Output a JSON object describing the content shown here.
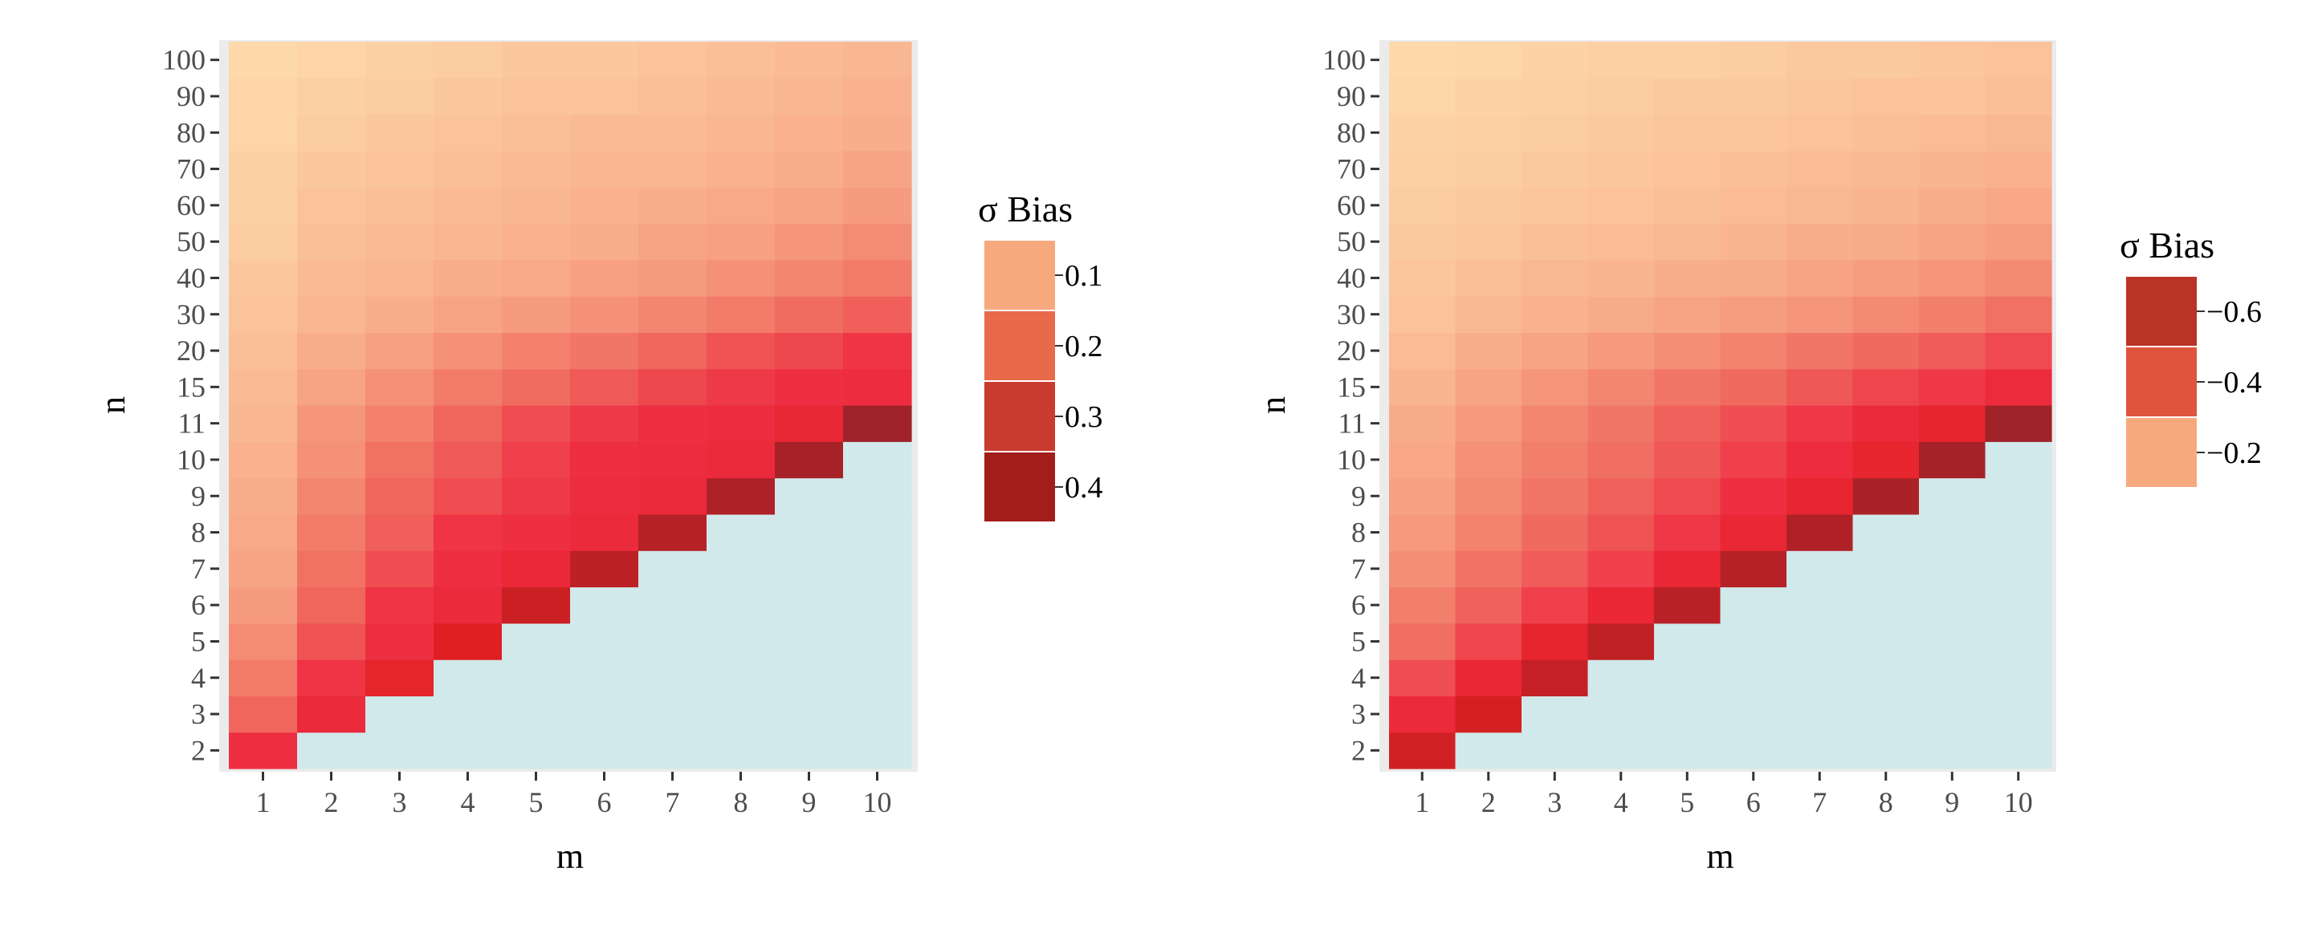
{
  "chart_data": [
    {
      "type": "heatmap",
      "xlabel": "m",
      "ylabel": "n",
      "x_categories": [
        "1",
        "2",
        "3",
        "4",
        "5",
        "6",
        "7",
        "8",
        "9",
        "10"
      ],
      "y_categories": [
        "2",
        "3",
        "4",
        "5",
        "6",
        "7",
        "8",
        "9",
        "10",
        "11",
        "15",
        "20",
        "30",
        "40",
        "50",
        "60",
        "70",
        "80",
        "90",
        "100"
      ],
      "missing_color": "#d1e9ea",
      "legend": {
        "title": "σ Bias",
        "entries": [
          {
            "label": "0.1",
            "color": "#f7a97e"
          },
          {
            "label": "0.2",
            "color": "#e86a4b"
          },
          {
            "label": "0.3",
            "color": "#c83b2e"
          },
          {
            "label": "0.4",
            "color": "#a31d1a"
          }
        ]
      },
      "values": [
        [
          0.34,
          null,
          null,
          null,
          null,
          null,
          null,
          null,
          null,
          null
        ],
        [
          0.25,
          0.36,
          null,
          null,
          null,
          null,
          null,
          null,
          null,
          null
        ],
        [
          0.21,
          0.33,
          0.4,
          null,
          null,
          null,
          null,
          null,
          null,
          null
        ],
        [
          0.18,
          0.28,
          0.34,
          0.43,
          null,
          null,
          null,
          null,
          null,
          null
        ],
        [
          0.15,
          0.25,
          0.33,
          0.36,
          0.46,
          null,
          null,
          null,
          null,
          null
        ],
        [
          0.13,
          0.23,
          0.29,
          0.34,
          0.37,
          0.48,
          null,
          null,
          null,
          null
        ],
        [
          0.12,
          0.21,
          0.26,
          0.33,
          0.34,
          0.36,
          0.49,
          null,
          null,
          null
        ],
        [
          0.11,
          0.19,
          0.25,
          0.29,
          0.32,
          0.35,
          0.36,
          0.5,
          null,
          null
        ],
        [
          0.1,
          0.17,
          0.23,
          0.27,
          0.31,
          0.34,
          0.35,
          0.36,
          0.51,
          null
        ],
        [
          0.09,
          0.16,
          0.2,
          0.25,
          0.29,
          0.32,
          0.34,
          0.35,
          0.38,
          0.52
        ],
        [
          0.08,
          0.13,
          0.17,
          0.21,
          0.24,
          0.27,
          0.3,
          0.32,
          0.34,
          0.35
        ],
        [
          0.07,
          0.11,
          0.14,
          0.17,
          0.2,
          0.22,
          0.25,
          0.28,
          0.3,
          0.33
        ],
        [
          0.06,
          0.09,
          0.11,
          0.13,
          0.15,
          0.17,
          0.19,
          0.21,
          0.24,
          0.26
        ],
        [
          0.05,
          0.08,
          0.09,
          0.11,
          0.12,
          0.14,
          0.15,
          0.17,
          0.19,
          0.21
        ],
        [
          0.04,
          0.07,
          0.08,
          0.09,
          0.1,
          0.11,
          0.13,
          0.14,
          0.16,
          0.18
        ],
        [
          0.03,
          0.06,
          0.07,
          0.08,
          0.09,
          0.1,
          0.11,
          0.12,
          0.13,
          0.15
        ],
        [
          0.03,
          0.05,
          0.06,
          0.07,
          0.08,
          0.09,
          0.09,
          0.1,
          0.11,
          0.13
        ],
        [
          0.02,
          0.04,
          0.05,
          0.06,
          0.07,
          0.08,
          0.08,
          0.09,
          0.1,
          0.11
        ],
        [
          0.02,
          0.03,
          0.04,
          0.05,
          0.06,
          0.06,
          0.07,
          0.08,
          0.09,
          0.1
        ],
        [
          0.01,
          0.02,
          0.03,
          0.04,
          0.05,
          0.05,
          0.06,
          0.07,
          0.08,
          0.09
        ]
      ]
    },
    {
      "type": "heatmap",
      "xlabel": "m",
      "ylabel": "n",
      "x_categories": [
        "1",
        "2",
        "3",
        "4",
        "5",
        "6",
        "7",
        "8",
        "9",
        "10"
      ],
      "y_categories": [
        "2",
        "3",
        "4",
        "5",
        "6",
        "7",
        "8",
        "9",
        "10",
        "11",
        "15",
        "20",
        "30",
        "40",
        "50",
        "60",
        "70",
        "80",
        "90",
        "100"
      ],
      "missing_color": "#d1e9ea",
      "legend": {
        "title": "σ Bias",
        "entries": [
          {
            "label": "−0.6",
            "color": "#bb3327"
          },
          {
            "label": "−0.4",
            "color": "#e0533d"
          },
          {
            "label": "−0.2",
            "color": "#f7a97e"
          }
        ]
      },
      "values": [
        [
          -0.6,
          null,
          null,
          null,
          null,
          null,
          null,
          null,
          null,
          null
        ],
        [
          -0.48,
          -0.59,
          null,
          null,
          null,
          null,
          null,
          null,
          null,
          null
        ],
        [
          -0.38,
          -0.5,
          -0.62,
          null,
          null,
          null,
          null,
          null,
          null,
          null
        ],
        [
          -0.31,
          -0.4,
          -0.52,
          -0.63,
          null,
          null,
          null,
          null,
          null,
          null
        ],
        [
          -0.27,
          -0.34,
          -0.41,
          -0.5,
          -0.64,
          null,
          null,
          null,
          null,
          null
        ],
        [
          -0.23,
          -0.3,
          -0.35,
          -0.41,
          -0.5,
          -0.65,
          null,
          null,
          null,
          null
        ],
        [
          -0.2,
          -0.26,
          -0.32,
          -0.37,
          -0.43,
          -0.5,
          -0.66,
          null,
          null,
          null
        ],
        [
          -0.18,
          -0.24,
          -0.29,
          -0.34,
          -0.39,
          -0.45,
          -0.51,
          -0.67,
          null,
          null
        ],
        [
          -0.16,
          -0.22,
          -0.27,
          -0.31,
          -0.36,
          -0.41,
          -0.46,
          -0.52,
          -0.68,
          null
        ],
        [
          -0.15,
          -0.2,
          -0.25,
          -0.29,
          -0.34,
          -0.38,
          -0.43,
          -0.48,
          -0.52,
          -0.69
        ],
        [
          -0.12,
          -0.17,
          -0.21,
          -0.25,
          -0.29,
          -0.32,
          -0.36,
          -0.4,
          -0.43,
          -0.47
        ],
        [
          -0.1,
          -0.14,
          -0.17,
          -0.2,
          -0.23,
          -0.26,
          -0.29,
          -0.32,
          -0.35,
          -0.39
        ],
        [
          -0.08,
          -0.11,
          -0.13,
          -0.15,
          -0.17,
          -0.19,
          -0.21,
          -0.24,
          -0.27,
          -0.3
        ],
        [
          -0.07,
          -0.09,
          -0.11,
          -0.12,
          -0.14,
          -0.15,
          -0.17,
          -0.19,
          -0.21,
          -0.24
        ],
        [
          -0.06,
          -0.07,
          -0.09,
          -0.1,
          -0.11,
          -0.12,
          -0.14,
          -0.15,
          -0.17,
          -0.19
        ],
        [
          -0.05,
          -0.06,
          -0.07,
          -0.08,
          -0.09,
          -0.1,
          -0.11,
          -0.12,
          -0.14,
          -0.16
        ],
        [
          -0.04,
          -0.05,
          -0.06,
          -0.07,
          -0.08,
          -0.09,
          -0.1,
          -0.11,
          -0.12,
          -0.13
        ],
        [
          -0.03,
          -0.04,
          -0.05,
          -0.06,
          -0.07,
          -0.07,
          -0.08,
          -0.09,
          -0.1,
          -0.11
        ],
        [
          -0.02,
          -0.03,
          -0.04,
          -0.05,
          -0.06,
          -0.06,
          -0.07,
          -0.08,
          -0.08,
          -0.09
        ],
        [
          -0.01,
          -0.02,
          -0.03,
          -0.04,
          -0.04,
          -0.05,
          -0.06,
          -0.06,
          -0.07,
          -0.08
        ]
      ]
    }
  ]
}
